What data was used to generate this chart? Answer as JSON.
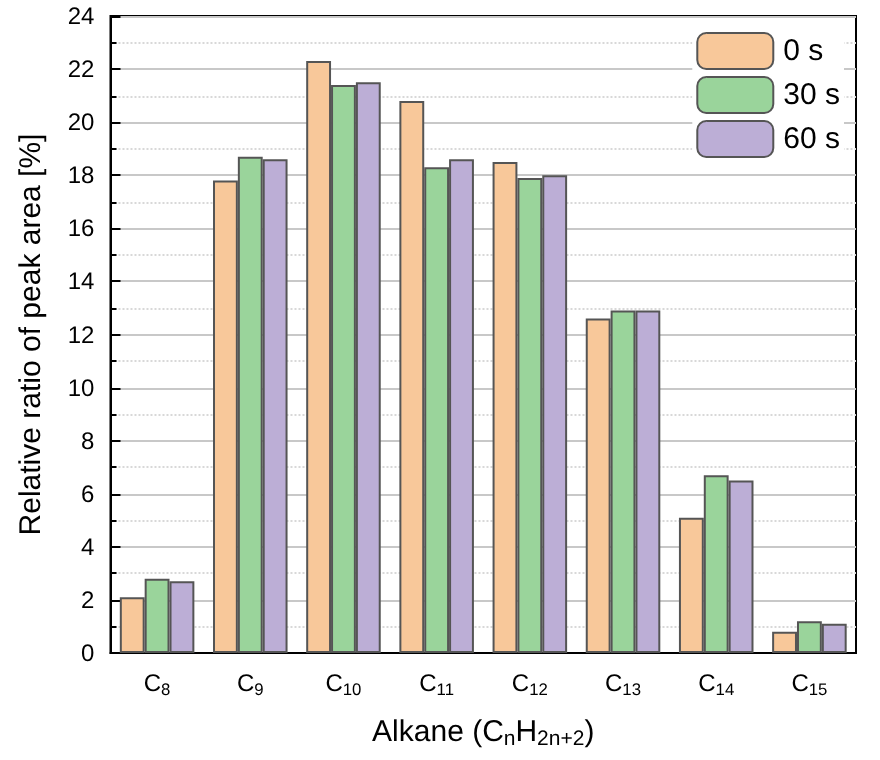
{
  "chart_data": {
    "type": "bar",
    "categories": [
      "C$_{8}$",
      "C$_{9}$",
      "C$_{10}$",
      "C$_{11}$",
      "C$_{12}$",
      "C$_{13}$",
      "C$_{14}$",
      "C$_{15}$"
    ],
    "series": [
      {
        "name": "0 s",
        "color": "#f8c89a",
        "values": [
          2.1,
          17.8,
          22.3,
          20.8,
          18.5,
          12.6,
          5.1,
          0.8
        ]
      },
      {
        "name": "30 s",
        "color": "#9ad49b",
        "values": [
          2.8,
          18.7,
          21.4,
          18.3,
          17.9,
          12.9,
          6.7,
          1.2
        ]
      },
      {
        "name": "60 s",
        "color": "#bcaed6",
        "values": [
          2.7,
          18.6,
          21.5,
          18.6,
          18.0,
          12.9,
          6.5,
          1.1
        ]
      }
    ],
    "xlabel": "Alkane (C$_{n}$H$_{2n+2}$)",
    "ylabel": "Relative ratio of peak area [%]",
    "ylim": [
      0,
      24
    ],
    "yticks": [
      0,
      2,
      4,
      6,
      8,
      10,
      12,
      14,
      16,
      18,
      20,
      22,
      24
    ],
    "grid": "y",
    "legend": "top right"
  }
}
